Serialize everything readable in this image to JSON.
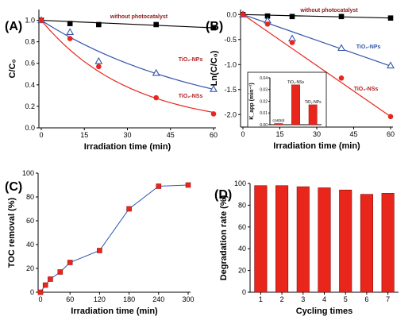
{
  "chart_data": [
    {
      "type": "line",
      "panel_label": "(A)",
      "xlabel": "Irradiation time (min)",
      "ylabel": "C/C₀",
      "xlim": [
        0,
        60
      ],
      "ylim": [
        0,
        1.1
      ],
      "xticks": [
        0,
        15,
        30,
        45,
        60
      ],
      "yticks": [
        0.0,
        0.2,
        0.4,
        0.6,
        0.8,
        1.0
      ],
      "series": [
        {
          "name": "without photocatalyst",
          "marker": "square",
          "color": "#000000",
          "points": [
            [
              0,
              1.0
            ],
            [
              10,
              0.97
            ],
            [
              20,
              0.96
            ],
            [
              40,
              0.96
            ],
            [
              60,
              0.93
            ]
          ],
          "fit": [
            [
              0,
              1.0
            ],
            [
              60,
              0.93
            ]
          ]
        },
        {
          "name": "TiO₂-NPs",
          "marker": "triangle",
          "color": "#3355aa",
          "points": [
            [
              0,
              1.0
            ],
            [
              10,
              0.89
            ],
            [
              20,
              0.62
            ],
            [
              40,
              0.51
            ],
            [
              60,
              0.36
            ]
          ],
          "fit": "exp:0.0171"
        },
        {
          "name": "TiO₂-NSs",
          "marker": "circle",
          "color": "#e8261c",
          "points": [
            [
              0,
              1.0
            ],
            [
              10,
              0.83
            ],
            [
              20,
              0.57
            ],
            [
              40,
              0.28
            ],
            [
              60,
              0.13
            ]
          ],
          "fit": "exp:0.0323"
        }
      ],
      "annotations": [
        {
          "text": "without photocatalyst",
          "color": "#8b1a1a",
          "x": 34,
          "y": 1.02
        },
        {
          "text": "TiO₂-NPs",
          "color": "#b22020",
          "x": 52,
          "y": 0.62
        },
        {
          "text": "TiO₂-NSs",
          "color": "#b22020",
          "x": 52,
          "y": 0.28
        }
      ]
    },
    {
      "type": "line",
      "panel_label": "(B)",
      "xlabel": "Irradiation time (min)",
      "ylabel": "Ln(C/C₀)",
      "xlim": [
        0,
        60
      ],
      "ylim": [
        -2.25,
        0.1
      ],
      "xticks": [
        0,
        15,
        30,
        45,
        60
      ],
      "yticks": [
        0.0,
        -0.5,
        -1.0,
        -1.5,
        -2.0
      ],
      "series": [
        {
          "name": "without photocatalyst",
          "marker": "square",
          "color": "#000000",
          "points": [
            [
              0,
              0.0
            ],
            [
              10,
              -0.03
            ],
            [
              20,
              -0.04
            ],
            [
              40,
              -0.04
            ],
            [
              60,
              -0.07
            ]
          ],
          "fit": [
            [
              0,
              0.0
            ],
            [
              60,
              -0.07
            ]
          ]
        },
        {
          "name": "TiO₂-NPs",
          "marker": "triangle",
          "color": "#3355aa",
          "points": [
            [
              0,
              0.0
            ],
            [
              10,
              -0.12
            ],
            [
              20,
              -0.48
            ],
            [
              40,
              -0.67
            ],
            [
              60,
              -1.02
            ]
          ],
          "fit": [
            [
              0,
              0.0
            ],
            [
              60,
              -1.03
            ]
          ]
        },
        {
          "name": "TiO₂-NSs",
          "marker": "circle",
          "color": "#e8261c",
          "points": [
            [
              0,
              0.0
            ],
            [
              10,
              -0.19
            ],
            [
              20,
              -0.56
            ],
            [
              40,
              -1.27
            ],
            [
              60,
              -2.04
            ]
          ],
          "fit": [
            [
              0,
              0.0
            ],
            [
              60,
              -2.04
            ]
          ]
        }
      ],
      "annotations": [
        {
          "text": "without photocatalyst",
          "color": "#8b1a1a",
          "x": 35,
          "y": 0.05
        },
        {
          "text": "TiO₂-NPs",
          "color": "#3355aa",
          "x": 51,
          "y": -0.68
        },
        {
          "text": "TiO₂-NSs",
          "color": "#b22020",
          "x": 50,
          "y": -1.52
        }
      ],
      "inset": {
        "type": "bar",
        "ylabel": "K_app (min⁻¹)",
        "ylim": [
          0,
          0.04
        ],
        "yticks": [
          0.0,
          0.01,
          0.02,
          0.03,
          0.04
        ],
        "ytick_labels": [
          "0.00",
          "0.01",
          "0.02",
          "0.03",
          "0.04"
        ],
        "categories": [
          "control",
          "TiO₂-NSs",
          "TiO₂-NPs"
        ],
        "values": [
          0.001,
          0.034,
          0.017
        ],
        "color": "#e8261c"
      }
    },
    {
      "type": "line",
      "panel_label": "(C)",
      "xlabel": "Irradiation time (min)",
      "ylabel": "TOC removal (%)",
      "xlim": [
        0,
        300
      ],
      "ylim": [
        0,
        100
      ],
      "xticks": [
        0,
        60,
        120,
        180,
        240,
        300
      ],
      "yticks": [
        0,
        20,
        40,
        60,
        80,
        100
      ],
      "series": [
        {
          "name": "",
          "marker": "square",
          "color": "#e8261c",
          "line_color": "#2a55b0",
          "points": [
            [
              0,
              0
            ],
            [
              10,
              6
            ],
            [
              20,
              11
            ],
            [
              40,
              17
            ],
            [
              60,
              25
            ],
            [
              120,
              35
            ],
            [
              180,
              70
            ],
            [
              240,
              89
            ],
            [
              300,
              90
            ]
          ]
        }
      ]
    },
    {
      "type": "bar",
      "panel_label": "(D)",
      "xlabel": "Cycling times",
      "ylabel": "Degradation rate (%)",
      "ylim": [
        0,
        100
      ],
      "yticks": [
        0,
        20,
        40,
        60,
        80,
        100
      ],
      "categories": [
        "1",
        "2",
        "3",
        "4",
        "5",
        "6",
        "7"
      ],
      "values": [
        98,
        98,
        97,
        96,
        94,
        90,
        91
      ],
      "color": "#e8261c"
    }
  ]
}
